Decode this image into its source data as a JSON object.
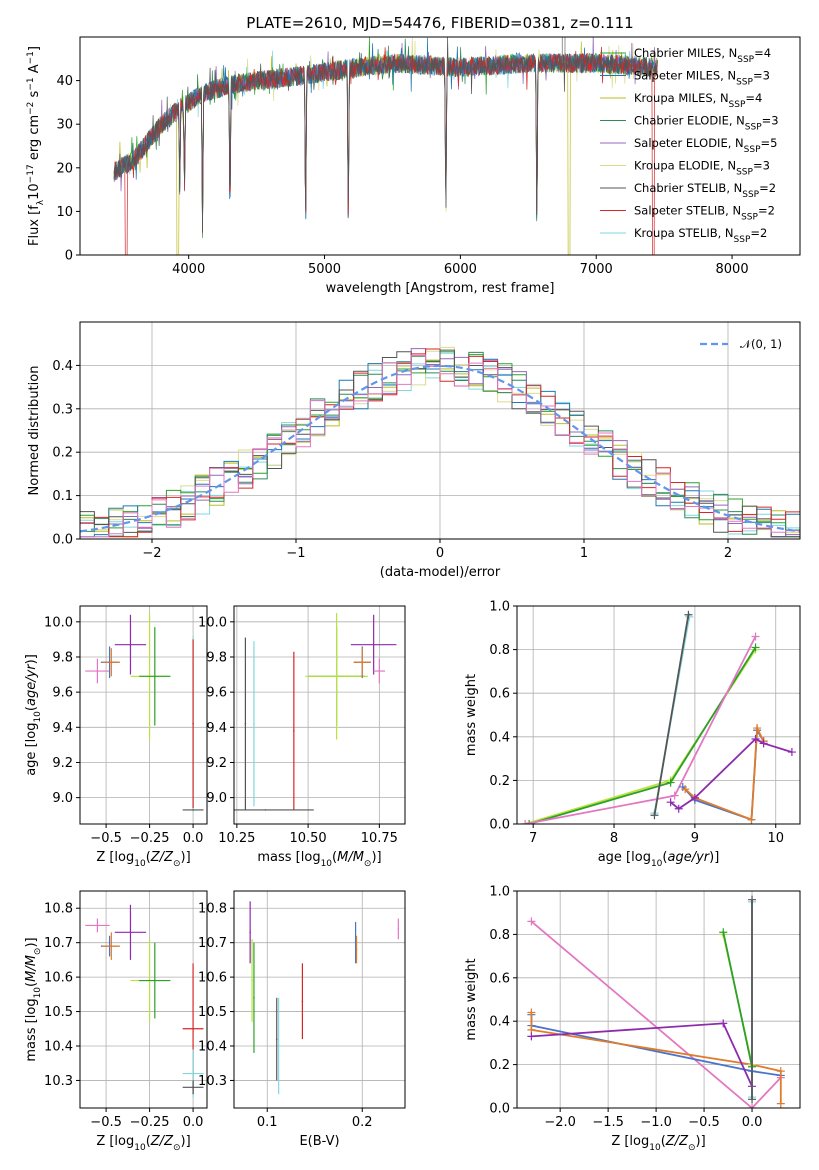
{
  "figure": {
    "title": "PLATE=2610, MJD=54476, FIBERID=0381, z=0.111"
  },
  "colors": {
    "Chabrier MILES": "#2ca02c",
    "Salpeter MILES": "#1f77b4",
    "Kroupa MILES": "#bcbd22",
    "Chabrier ELODIE": "#2e8b57",
    "Salpeter ELODIE": "#9467bd",
    "Kroupa ELODIE": "#dbdb8d",
    "Chabrier STELIB": "#555555",
    "Salpeter STELIB": "#d62728",
    "Kroupa STELIB": "#7fd8e0",
    "normal": "#6495ed",
    "fit_blue": "#4a74c9",
    "fit_orange": "#e07b2a",
    "fit_pink": "#e377c2",
    "fit_purple": "#8e2aad",
    "fit_lime": "#b9e33a",
    "fit_cyan": "#7fd8e0",
    "fit_green": "#2ca02c",
    "fit_gray": "#555555",
    "fit_red": "#d62728"
  },
  "chart_data": [
    {
      "id": "spectrum",
      "type": "line",
      "xlabel": "wavelength [Angstrom, rest frame]",
      "ylabel": "Flux [f_λ10^-17 erg cm^-2 s^-1 A^-1]",
      "xlim": [
        3200,
        8500
      ],
      "ylim": [
        0,
        50
      ],
      "xticks": [
        4000,
        5000,
        6000,
        7000,
        8000
      ],
      "yticks": [
        0,
        10,
        20,
        30,
        40
      ],
      "grid": false,
      "legend_position": "right",
      "x_range_of_data": [
        3450,
        7450
      ],
      "continuum_anchors": [
        [
          3450,
          19
        ],
        [
          3600,
          22
        ],
        [
          3800,
          30
        ],
        [
          3950,
          34
        ],
        [
          4100,
          37
        ],
        [
          4300,
          39
        ],
        [
          4500,
          40
        ],
        [
          4800,
          41
        ],
        [
          5000,
          42
        ],
        [
          5500,
          44
        ],
        [
          6000,
          43
        ],
        [
          6500,
          44
        ],
        [
          7000,
          44
        ],
        [
          7450,
          43
        ]
      ],
      "absorption_features": [
        [
          3934,
          16
        ],
        [
          3969,
          14
        ],
        [
          4102,
          5
        ],
        [
          4304,
          7
        ],
        [
          4861,
          5
        ],
        [
          5175,
          6
        ],
        [
          5893,
          8
        ],
        [
          6563,
          4
        ]
      ],
      "dropouts": [
        [
          3540,
          "Salpeter STELIB"
        ],
        [
          3920,
          "Kroupa MILES"
        ],
        [
          6800,
          "Kroupa MILES"
        ],
        [
          7420,
          "Salpeter STELIB"
        ]
      ],
      "emission_spikes": [
        [
          6750,
          50
        ],
        [
          6770,
          50
        ]
      ],
      "series": [
        {
          "name": "Chabrier MILES",
          "label_main": "Chabrier MILES, N",
          "label_sub": "SSP",
          "label_tail": "=4"
        },
        {
          "name": "Salpeter MILES",
          "label_main": "Salpeter MILES, N",
          "label_sub": "SSP",
          "label_tail": "=3"
        },
        {
          "name": "Kroupa MILES",
          "label_main": "Kroupa MILES, N",
          "label_sub": "SSP",
          "label_tail": "=4"
        },
        {
          "name": "Chabrier ELODIE",
          "label_main": "Chabrier ELODIE, N",
          "label_sub": "SSP",
          "label_tail": "=3"
        },
        {
          "name": "Salpeter ELODIE",
          "label_main": "Salpeter ELODIE, N",
          "label_sub": "SSP",
          "label_tail": "=5"
        },
        {
          "name": "Kroupa ELODIE",
          "label_main": "Kroupa ELODIE, N",
          "label_sub": "SSP",
          "label_tail": "=3"
        },
        {
          "name": "Chabrier STELIB",
          "label_main": "Chabrier STELIB, N",
          "label_sub": "SSP",
          "label_tail": "=2"
        },
        {
          "name": "Salpeter STELIB",
          "label_main": "Salpeter STELIB, N",
          "label_sub": "SSP",
          "label_tail": "=2"
        },
        {
          "name": "Kroupa STELIB",
          "label_main": "Kroupa STELIB, N",
          "label_sub": "SSP",
          "label_tail": "=2"
        }
      ]
    },
    {
      "id": "residuals",
      "type": "line",
      "xlabel": "(data-model)/error",
      "ylabel": "Normed distribution",
      "xlim": [
        -2.5,
        2.5
      ],
      "ylim": [
        0,
        0.5
      ],
      "xticks": [
        -2,
        -1,
        0,
        1,
        2
      ],
      "yticks": [
        0.0,
        0.1,
        0.2,
        0.3,
        0.4
      ],
      "grid": true,
      "legend_position": "upper right",
      "legend": "𝒩(0, 1)",
      "bin_width": 0.1,
      "normal_curve": {
        "mean": 0,
        "sigma": 1
      }
    },
    {
      "id": "age_vs_Z",
      "type": "scatter",
      "xlabel": "Z [log10(Z/Z⊙)]",
      "ylabel": "age  [log10(age/yr)]",
      "xlim": [
        -0.65,
        0.08
      ],
      "ylim": [
        8.85,
        10.09
      ],
      "xticks": [
        -0.5,
        -0.25,
        0.0
      ],
      "yticks": [
        9.0,
        9.2,
        9.4,
        9.6,
        9.8,
        10.0
      ],
      "grid": true,
      "points": [
        {
          "x": -0.55,
          "y": 9.72,
          "xerr": 0.07,
          "yerr": 0.07,
          "c": "fit_pink"
        },
        {
          "x": -0.48,
          "y": 9.77,
          "xerr": 0.05,
          "yerr": 0.09,
          "c": "fit_blue"
        },
        {
          "x": -0.47,
          "y": 9.77,
          "xerr": 0.05,
          "yerr": 0.08,
          "c": "fit_orange"
        },
        {
          "x": -0.36,
          "y": 9.87,
          "xerr": 0.09,
          "yerr": 0.17,
          "c": "fit_purple"
        },
        {
          "x": -0.25,
          "y": 9.69,
          "xerr": 0.11,
          "yerr": 0.36,
          "c": "fit_lime"
        },
        {
          "x": -0.22,
          "y": 9.69,
          "xerr": 0.09,
          "yerr": 0.28,
          "c": "fit_green"
        },
        {
          "x": 0.0,
          "y": 9.42,
          "xerr": 0.0,
          "yerr": 0.5,
          "c": "fit_cyan"
        },
        {
          "x": 0.0,
          "y": 8.93,
          "xerr": 0.06,
          "yerr": 0.0,
          "c": "fit_gray"
        },
        {
          "x": 0.0,
          "y": 9.42,
          "xerr": 0.0,
          "yerr": 0.48,
          "c": "fit_red"
        }
      ]
    },
    {
      "id": "age_vs_mass",
      "type": "scatter",
      "xlabel": "mass [log10(M/M⊙)]",
      "ylabel": "",
      "xlim": [
        10.24,
        10.84
      ],
      "ylim": [
        8.85,
        10.09
      ],
      "xticks": [
        10.25,
        10.5,
        10.75
      ],
      "yticks": [
        9.0,
        9.2,
        9.4,
        9.6,
        9.8,
        10.0
      ],
      "grid": true,
      "points": [
        {
          "x": 10.28,
          "y": 9.42,
          "xerr": 0.0,
          "yerr": 0.49,
          "c": "fit_gray"
        },
        {
          "x": 10.31,
          "y": 9.42,
          "xerr": 0.0,
          "yerr": 0.47,
          "c": "fit_cyan"
        },
        {
          "x": 10.45,
          "y": 9.38,
          "xerr": 0.0,
          "yerr": 0.45,
          "c": "fit_red"
        },
        {
          "x": 10.35,
          "y": 8.93,
          "xerr": 0.17,
          "yerr": 0.0,
          "c": "fit_gray"
        },
        {
          "x": 10.6,
          "y": 9.69,
          "xerr": 0.1,
          "yerr": 0.28,
          "c": "fit_green"
        },
        {
          "x": 10.6,
          "y": 9.69,
          "xerr": 0.11,
          "yerr": 0.36,
          "c": "fit_lime"
        },
        {
          "x": 10.69,
          "y": 9.77,
          "xerr": 0.03,
          "yerr": 0.09,
          "c": "fit_blue"
        },
        {
          "x": 10.69,
          "y": 9.77,
          "xerr": 0.03,
          "yerr": 0.08,
          "c": "fit_orange"
        },
        {
          "x": 10.73,
          "y": 9.87,
          "xerr": 0.08,
          "yerr": 0.17,
          "c": "fit_purple"
        },
        {
          "x": 10.75,
          "y": 9.72,
          "xerr": 0.02,
          "yerr": 0.07,
          "c": "fit_pink"
        }
      ]
    },
    {
      "id": "weight_vs_age",
      "type": "line",
      "xlabel": "age  [log10(age/yr)]",
      "ylabel": "mass weight",
      "xlim": [
        6.8,
        10.3
      ],
      "ylim": [
        0,
        1.0
      ],
      "xticks": [
        7,
        8,
        9,
        10
      ],
      "yticks": [
        0.0,
        0.2,
        0.4,
        0.6,
        0.8,
        1.0
      ],
      "grid": true,
      "series": [
        {
          "c": "fit_lime",
          "x": [
            6.9,
            8.7,
            9.75
          ],
          "y": [
            0.0,
            0.2,
            0.8
          ]
        },
        {
          "c": "fit_green",
          "x": [
            6.95,
            8.7,
            9.75
          ],
          "y": [
            0.0,
            0.19,
            0.81
          ]
        },
        {
          "c": "fit_pink",
          "x": [
            6.9,
            8.75,
            9.75
          ],
          "y": [
            0.0,
            0.13,
            0.86
          ]
        },
        {
          "c": "fit_cyan",
          "x": [
            8.5,
            8.93
          ],
          "y": [
            0.05,
            0.95
          ]
        },
        {
          "c": "fit_gray",
          "x": [
            8.5,
            8.92
          ],
          "y": [
            0.04,
            0.96
          ]
        },
        {
          "c": "fit_blue",
          "x": [
            8.85,
            9.0,
            9.7,
            9.77,
            9.85
          ],
          "y": [
            0.17,
            0.11,
            0.02,
            0.43,
            0.38
          ]
        },
        {
          "c": "fit_orange",
          "x": [
            8.88,
            9.0,
            9.7,
            9.77,
            9.85
          ],
          "y": [
            0.16,
            0.12,
            0.02,
            0.44,
            0.38
          ]
        },
        {
          "c": "fit_purple",
          "x": [
            8.7,
            8.8,
            9.0,
            9.75,
            9.85,
            10.2
          ],
          "y": [
            0.1,
            0.07,
            0.12,
            0.39,
            0.37,
            0.33
          ]
        }
      ]
    },
    {
      "id": "mass_vs_Z",
      "type": "scatter",
      "xlabel": "Z [log10(Z/Z⊙)]",
      "ylabel": "mass [log10(M/M⊙)]",
      "xlim": [
        -0.65,
        0.08
      ],
      "ylim": [
        10.22,
        10.85
      ],
      "xticks": [
        -0.5,
        -0.25,
        0.0
      ],
      "yticks": [
        10.3,
        10.4,
        10.5,
        10.6,
        10.7,
        10.8
      ],
      "grid": true,
      "points": [
        {
          "x": -0.55,
          "y": 10.75,
          "xerr": 0.07,
          "yerr": 0.02,
          "c": "fit_pink"
        },
        {
          "x": -0.48,
          "y": 10.69,
          "xerr": 0.05,
          "yerr": 0.03,
          "c": "fit_blue"
        },
        {
          "x": -0.47,
          "y": 10.69,
          "xerr": 0.05,
          "yerr": 0.04,
          "c": "fit_orange"
        },
        {
          "x": -0.36,
          "y": 10.73,
          "xerr": 0.09,
          "yerr": 0.08,
          "c": "fit_purple"
        },
        {
          "x": -0.25,
          "y": 10.59,
          "xerr": 0.11,
          "yerr": 0.12,
          "c": "fit_lime"
        },
        {
          "x": -0.22,
          "y": 10.59,
          "xerr": 0.09,
          "yerr": 0.11,
          "c": "fit_green"
        },
        {
          "x": 0.0,
          "y": 10.45,
          "xerr": 0.06,
          "yerr": 0.19,
          "c": "fit_red"
        },
        {
          "x": 0.0,
          "y": 10.32,
          "xerr": 0.06,
          "yerr": 0.07,
          "c": "fit_cyan"
        },
        {
          "x": 0.0,
          "y": 10.28,
          "xerr": 0.06,
          "yerr": 0.02,
          "c": "fit_gray"
        }
      ]
    },
    {
      "id": "mass_vs_ebv",
      "type": "scatter",
      "xlabel": "E(B-V)",
      "ylabel": "",
      "xlim": [
        0.065,
        0.245
      ],
      "ylim": [
        10.22,
        10.85
      ],
      "xticks": [
        0.1,
        0.2
      ],
      "yticks": [
        10.3,
        10.4,
        10.5,
        10.6,
        10.7,
        10.8
      ],
      "grid": true,
      "points": [
        {
          "x": 0.082,
          "y": 10.73,
          "xerr": 0.0,
          "yerr": 0.09,
          "c": "fit_purple"
        },
        {
          "x": 0.084,
          "y": 10.59,
          "xerr": 0.0,
          "yerr": 0.12,
          "c": "fit_lime"
        },
        {
          "x": 0.086,
          "y": 10.54,
          "xerr": 0.0,
          "yerr": 0.16,
          "c": "fit_green"
        },
        {
          "x": 0.11,
          "y": 10.42,
          "xerr": 0.0,
          "yerr": 0.12,
          "c": "fit_gray"
        },
        {
          "x": 0.112,
          "y": 10.4,
          "xerr": 0.0,
          "yerr": 0.14,
          "c": "fit_cyan"
        },
        {
          "x": 0.137,
          "y": 10.53,
          "xerr": 0.0,
          "yerr": 0.11,
          "c": "fit_red"
        },
        {
          "x": 0.193,
          "y": 10.7,
          "xerr": 0.0,
          "yerr": 0.06,
          "c": "fit_blue"
        },
        {
          "x": 0.194,
          "y": 10.68,
          "xerr": 0.0,
          "yerr": 0.04,
          "c": "fit_orange"
        },
        {
          "x": 0.238,
          "y": 10.74,
          "xerr": 0.0,
          "yerr": 0.03,
          "c": "fit_pink"
        }
      ]
    },
    {
      "id": "weight_vs_Z",
      "type": "line",
      "xlabel": "Z [log10(Z/Z⊙)]",
      "ylabel": "mass weight",
      "xlim": [
        -2.45,
        0.5
      ],
      "ylim": [
        0,
        1.0
      ],
      "xticks": [
        -2.0,
        -1.5,
        -1.0,
        -0.5,
        0.0
      ],
      "yticks": [
        0.0,
        0.2,
        0.4,
        0.6,
        0.8,
        1.0
      ],
      "grid": true,
      "series": [
        {
          "c": "fit_pink",
          "x": [
            -2.3,
            0.0,
            0.3
          ],
          "y": [
            0.86,
            0.0,
            0.14
          ]
        },
        {
          "c": "fit_blue",
          "x": [
            -2.3,
            -2.3,
            0.0,
            0.3
          ],
          "y": [
            0.43,
            0.38,
            0.17,
            0.15
          ]
        },
        {
          "c": "fit_orange",
          "x": [
            -2.3,
            -2.3,
            0.0,
            0.3,
            0.3
          ],
          "y": [
            0.44,
            0.36,
            0.2,
            0.17,
            0.02
          ]
        },
        {
          "c": "fit_purple",
          "x": [
            -2.3,
            -0.3,
            0.0
          ],
          "y": [
            0.33,
            0.39,
            0.1
          ]
        },
        {
          "c": "fit_lime",
          "x": [
            -0.3,
            0.0
          ],
          "y": [
            0.8,
            0.2
          ]
        },
        {
          "c": "fit_green",
          "x": [
            -0.3,
            0.0
          ],
          "y": [
            0.81,
            0.19
          ]
        },
        {
          "c": "fit_cyan",
          "x": [
            0.0,
            0.0
          ],
          "y": [
            0.05,
            0.95
          ]
        },
        {
          "c": "fit_gray",
          "x": [
            0.0,
            0.0
          ],
          "y": [
            0.04,
            0.96
          ]
        }
      ]
    }
  ]
}
